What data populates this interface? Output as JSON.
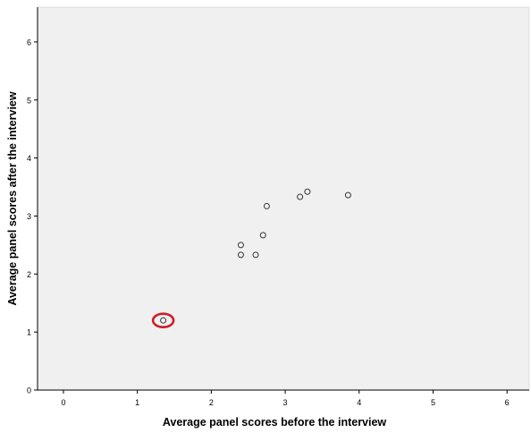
{
  "chart_data": {
    "type": "scatter",
    "title": "",
    "xlabel": "Average panel scores before the interview",
    "ylabel": "Average panel scores after the interview",
    "xlim": [
      -0.35,
      6.3
    ],
    "ylim": [
      0,
      6.6
    ],
    "x_ticks": [
      "0",
      "1",
      "2",
      "3",
      "4",
      "5",
      "6"
    ],
    "y_ticks": [
      "0",
      "1",
      "2",
      "3",
      "4",
      "5",
      "6"
    ],
    "grid": false,
    "series": [
      {
        "points": [
          {
            "x": 1.35,
            "y": 1.2,
            "highlighted": true
          },
          {
            "x": 2.4,
            "y": 2.33
          },
          {
            "x": 2.4,
            "y": 2.5
          },
          {
            "x": 2.6,
            "y": 2.33
          },
          {
            "x": 2.7,
            "y": 2.67
          },
          {
            "x": 2.75,
            "y": 3.17
          },
          {
            "x": 3.2,
            "y": 3.33
          },
          {
            "x": 3.3,
            "y": 3.42
          },
          {
            "x": 3.85,
            "y": 3.36
          }
        ]
      }
    ],
    "colors": {
      "plot_background": "#f0f0f0",
      "marker_stroke": "#333333",
      "highlight": "#cc1f2b",
      "axis": "#000000"
    }
  }
}
